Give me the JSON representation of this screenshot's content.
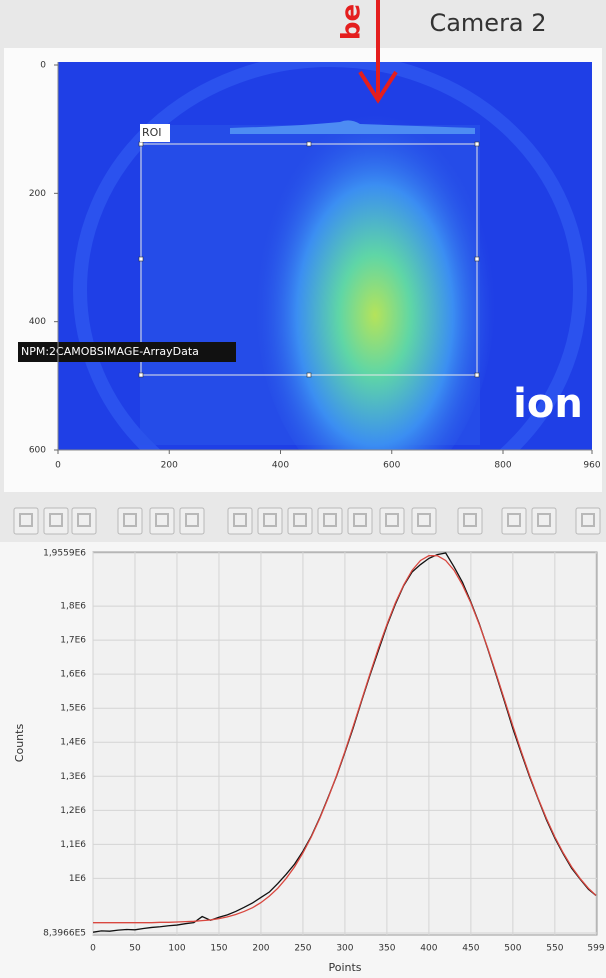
{
  "header": {
    "title": "Camera 2",
    "annotation": "be"
  },
  "image_view": {
    "roi_label": "ROI",
    "pv_label": "NPM:2CAMOBSIMAGE-ArrayData",
    "overlay_text": "ion",
    "xlim": [
      0,
      960
    ],
    "ylim": [
      0,
      600
    ],
    "xticks": [
      0,
      200,
      400,
      600,
      800,
      960
    ],
    "yticks": [
      0,
      200,
      400,
      600
    ]
  },
  "chart_data": {
    "type": "line",
    "xlabel": "Points",
    "ylabel": "Counts",
    "x": [
      0,
      10,
      20,
      30,
      40,
      50,
      60,
      70,
      80,
      90,
      100,
      110,
      120,
      130,
      140,
      150,
      160,
      170,
      180,
      190,
      200,
      210,
      220,
      230,
      240,
      250,
      260,
      270,
      280,
      290,
      300,
      310,
      320,
      330,
      340,
      350,
      360,
      370,
      380,
      390,
      400,
      410,
      420,
      430,
      440,
      450,
      460,
      470,
      480,
      490,
      500,
      510,
      520,
      530,
      540,
      550,
      560,
      570,
      580,
      590,
      599
    ],
    "series": [
      {
        "color": "#111111",
        "values": [
          842000,
          846000,
          845000,
          848000,
          850000,
          849000,
          853000,
          856000,
          858000,
          861000,
          863000,
          867000,
          870000,
          888000,
          877000,
          886000,
          893000,
          903000,
          915000,
          928000,
          944000,
          960000,
          985000,
          1012000,
          1042000,
          1080000,
          1124000,
          1178000,
          1238000,
          1300000,
          1370000,
          1443000,
          1522000,
          1598000,
          1670000,
          1742000,
          1805000,
          1860000,
          1900000,
          1922000,
          1940000,
          1951000,
          1955900,
          1915000,
          1870000,
          1812000,
          1748000,
          1675000,
          1598000,
          1520000,
          1440000,
          1368000,
          1298000,
          1234000,
          1172000,
          1118000,
          1072000,
          1030000,
          998000,
          968000,
          950000
        ]
      },
      {
        "color": "#d9473f",
        "values": [
          870000,
          870000,
          870000,
          870000,
          870000,
          870000,
          870000,
          870000,
          871000,
          871000,
          872000,
          873000,
          874000,
          876000,
          878000,
          882000,
          887000,
          894000,
          903000,
          914000,
          929000,
          948000,
          971000,
          1000000,
          1034000,
          1075000,
          1122000,
          1176000,
          1236000,
          1302000,
          1373000,
          1448000,
          1525000,
          1602000,
          1677000,
          1746000,
          1809000,
          1862000,
          1905000,
          1934000,
          1948000,
          1948000,
          1934000,
          1905000,
          1862000,
          1809000,
          1746000,
          1677000,
          1602000,
          1525000,
          1448000,
          1373000,
          1302000,
          1236000,
          1176000,
          1122000,
          1075000,
          1034000,
          1000000,
          971000,
          950000
        ]
      }
    ],
    "xlim": [
      0,
      599
    ],
    "ylim": [
      839660,
      1955900
    ],
    "xticks": [
      0,
      50,
      100,
      150,
      200,
      250,
      300,
      350,
      400,
      450,
      500,
      550,
      599
    ],
    "yticks": [
      {
        "value": 839660,
        "label": "8,3966E5"
      },
      {
        "value": 1000000,
        "label": "1E6"
      },
      {
        "value": 1100000,
        "label": "1,1E6"
      },
      {
        "value": 1200000,
        "label": "1,2E6"
      },
      {
        "value": 1300000,
        "label": "1,3E6"
      },
      {
        "value": 1400000,
        "label": "1,4E6"
      },
      {
        "value": 1500000,
        "label": "1,5E6"
      },
      {
        "value": 1600000,
        "label": "1,6E6"
      },
      {
        "value": 1700000,
        "label": "1,7E6"
      },
      {
        "value": 1800000,
        "label": "1,8E6"
      },
      {
        "value": 1955900,
        "label": "1,9559E6"
      }
    ],
    "grid": true
  }
}
